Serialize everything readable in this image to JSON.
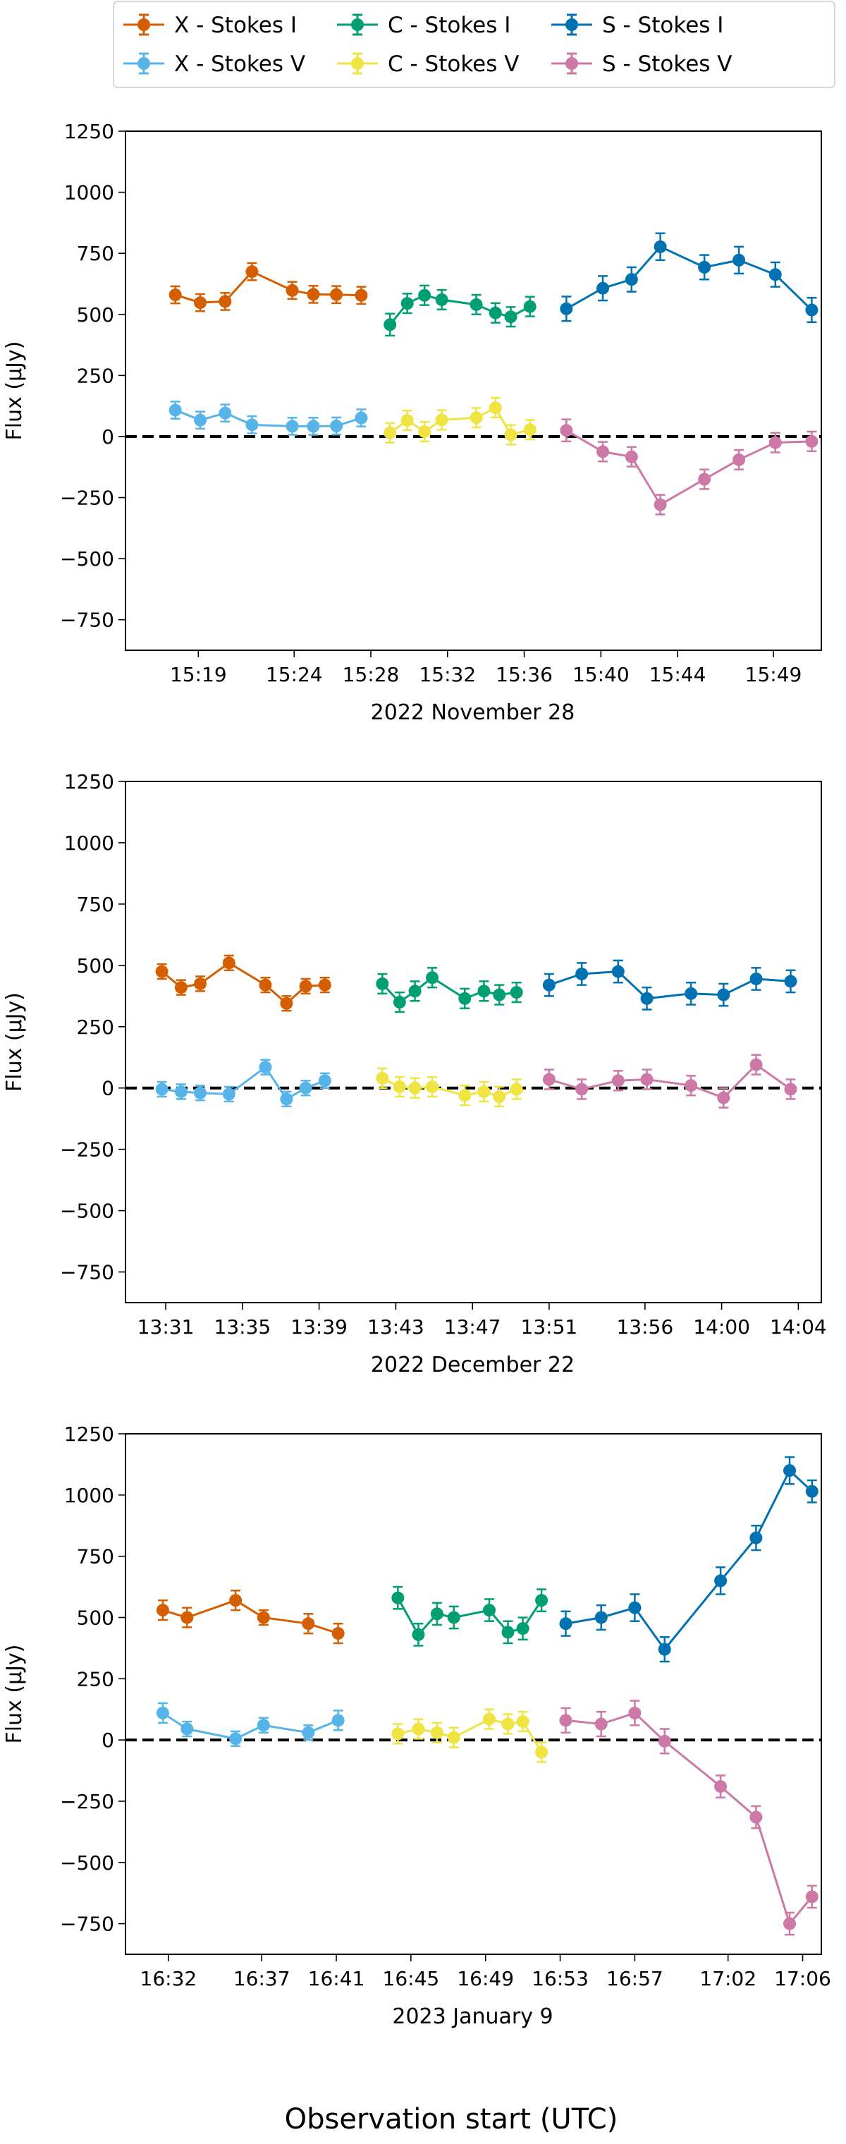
{
  "figure": {
    "xlabel_global": "Observation start (UTC)"
  },
  "legend": [
    {
      "label": "X - Stokes I",
      "color": "#d55e00"
    },
    {
      "label": "X - Stokes V",
      "color": "#56b4e9"
    },
    {
      "label": "C - Stokes I",
      "color": "#009e73"
    },
    {
      "label": "C - Stokes V",
      "color": "#f0e442"
    },
    {
      "label": "S - Stokes I",
      "color": "#0072b2"
    },
    {
      "label": "S - Stokes V",
      "color": "#cc79a7"
    }
  ],
  "chart_data": [
    {
      "type": "line",
      "title": "",
      "xlabel": "2022 November 28",
      "ylabel": "Flux (μJy)",
      "ylim": [
        -875,
        1250
      ],
      "yticks": [
        -750,
        -500,
        -250,
        0,
        250,
        500,
        750,
        1000,
        1250
      ],
      "xlim": [
        "15:15.2",
        "15:51.5"
      ],
      "xticks": [
        "15:19",
        "15:24",
        "15:28",
        "15:32",
        "15:36",
        "15:40",
        "15:44",
        "15:49"
      ],
      "reference_line": 0,
      "grid": false,
      "series": [
        {
          "name": "X - Stokes I",
          "color": "#d55e00",
          "x": [
            "15:17.8",
            "15:19.1",
            "15:20.4",
            "15:21.8",
            "15:23.9",
            "15:25.0",
            "15:26.2",
            "15:27.5"
          ],
          "values": [
            580,
            548,
            553,
            675,
            598,
            582,
            581,
            578
          ],
          "error": [
            35,
            35,
            35,
            35,
            35,
            35,
            35,
            35
          ]
        },
        {
          "name": "X - Stokes V",
          "color": "#56b4e9",
          "x": [
            "15:17.8",
            "15:19.1",
            "15:20.4",
            "15:21.8",
            "15:23.9",
            "15:25.0",
            "15:26.2",
            "15:27.5"
          ],
          "values": [
            108,
            67,
            96,
            48,
            42,
            42,
            43,
            76
          ],
          "error": [
            35,
            35,
            35,
            35,
            35,
            35,
            35,
            35
          ]
        },
        {
          "name": "C - Stokes I",
          "color": "#009e73",
          "x": [
            "15:29.0",
            "15:29.9",
            "15:30.8",
            "15:31.7",
            "15:33.5",
            "15:34.5",
            "15:35.3",
            "15:36.3"
          ],
          "values": [
            458,
            545,
            578,
            560,
            540,
            506,
            490,
            532
          ],
          "error": [
            45,
            40,
            40,
            40,
            40,
            40,
            40,
            40
          ]
        },
        {
          "name": "C - Stokes V",
          "color": "#f0e442",
          "x": [
            "15:29.0",
            "15:29.9",
            "15:30.8",
            "15:31.7",
            "15:33.5",
            "15:34.5",
            "15:35.3",
            "15:36.3"
          ],
          "values": [
            15,
            66,
            20,
            68,
            77,
            118,
            7,
            28
          ],
          "error": [
            40,
            40,
            40,
            40,
            40,
            40,
            40,
            40
          ]
        },
        {
          "name": "S - Stokes I",
          "color": "#0072b2",
          "x": [
            "15:38.2",
            "15:40.1",
            "15:41.6",
            "15:43.1",
            "15:45.4",
            "15:47.2",
            "15:49.1",
            "15:51.0"
          ],
          "values": [
            523,
            607,
            643,
            777,
            693,
            722,
            663,
            518
          ],
          "error": [
            50,
            50,
            50,
            55,
            50,
            55,
            50,
            50
          ]
        },
        {
          "name": "S - Stokes V",
          "color": "#cc79a7",
          "x": [
            "15:38.2",
            "15:40.1",
            "15:41.6",
            "15:43.1",
            "15:45.4",
            "15:47.2",
            "15:49.1",
            "15:51.0"
          ],
          "values": [
            25,
            -62,
            -83,
            -279,
            -175,
            -95,
            -25,
            -20
          ],
          "error": [
            45,
            40,
            40,
            40,
            40,
            40,
            40,
            40
          ]
        }
      ]
    },
    {
      "type": "line",
      "title": "",
      "xlabel": "2022 December 22",
      "ylabel": "Flux (μJy)",
      "ylim": [
        -875,
        1250
      ],
      "yticks": [
        -750,
        -500,
        -250,
        0,
        250,
        500,
        750,
        1000,
        1250
      ],
      "xlim": [
        "13:28.9",
        "14:05.2"
      ],
      "xticks": [
        "13:31",
        "13:35",
        "13:39",
        "13:43",
        "13:47",
        "13:51",
        "13:56",
        "14:00",
        "14:04"
      ],
      "reference_line": 0,
      "grid": false,
      "series": [
        {
          "name": "X - Stokes I",
          "color": "#d55e00",
          "x": [
            "13:30.8",
            "13:31.8",
            "13:32.8",
            "13:34.3",
            "13:36.2",
            "13:37.3",
            "13:38.3",
            "13:39.3"
          ],
          "values": [
            475,
            410,
            425,
            510,
            420,
            345,
            415,
            420
          ],
          "error": [
            30,
            30,
            30,
            30,
            30,
            30,
            30,
            30
          ]
        },
        {
          "name": "X - Stokes V",
          "color": "#56b4e9",
          "x": [
            "13:30.8",
            "13:31.8",
            "13:32.8",
            "13:34.3",
            "13:36.2",
            "13:37.3",
            "13:38.3",
            "13:39.3"
          ],
          "values": [
            -5,
            -15,
            -20,
            -25,
            85,
            -45,
            0,
            30
          ],
          "error": [
            30,
            30,
            30,
            30,
            30,
            30,
            30,
            30
          ]
        },
        {
          "name": "C - Stokes I",
          "color": "#009e73",
          "x": [
            "13:42.3",
            "13:43.2",
            "13:44.0",
            "13:44.9",
            "13:46.6",
            "13:47.6",
            "13:48.4",
            "13:49.3"
          ],
          "values": [
            425,
            350,
            395,
            450,
            365,
            395,
            380,
            390
          ],
          "error": [
            40,
            40,
            40,
            40,
            40,
            40,
            40,
            40
          ]
        },
        {
          "name": "C - Stokes V",
          "color": "#f0e442",
          "x": [
            "13:42.3",
            "13:43.2",
            "13:44.0",
            "13:44.9",
            "13:46.6",
            "13:47.6",
            "13:48.4",
            "13:49.3"
          ],
          "values": [
            40,
            5,
            0,
            5,
            -30,
            -15,
            -35,
            -5
          ],
          "error": [
            40,
            40,
            40,
            40,
            40,
            40,
            40,
            40
          ]
        },
        {
          "name": "S - Stokes I",
          "color": "#0072b2",
          "x": [
            "13:51.0",
            "13:52.7",
            "13:54.6",
            "13:56.1",
            "13:58.4",
            "14:00.1",
            "14:01.8",
            "14:03.6"
          ],
          "values": [
            420,
            465,
            475,
            365,
            385,
            380,
            445,
            435
          ],
          "error": [
            45,
            45,
            45,
            45,
            45,
            45,
            45,
            45
          ]
        },
        {
          "name": "S - Stokes V",
          "color": "#cc79a7",
          "x": [
            "13:51.0",
            "13:52.7",
            "13:54.6",
            "13:56.1",
            "13:58.4",
            "14:00.1",
            "14:01.8",
            "14:03.6"
          ],
          "values": [
            35,
            -5,
            30,
            35,
            10,
            -40,
            95,
            -5
          ],
          "error": [
            40,
            40,
            40,
            40,
            40,
            40,
            40,
            40
          ]
        }
      ]
    },
    {
      "type": "line",
      "title": "",
      "xlabel": "2023 January 9",
      "ylabel": "Flux (μJy)",
      "ylim": [
        -875,
        1250
      ],
      "yticks": [
        -750,
        -500,
        -250,
        0,
        250,
        500,
        750,
        1000,
        1250
      ],
      "xlim": [
        "16:29.7",
        "17:07.0"
      ],
      "xticks": [
        "16:32",
        "16:37",
        "16:41",
        "16:45",
        "16:49",
        "16:53",
        "16:57",
        "17:02",
        "17:06"
      ],
      "reference_line": 0,
      "grid": false,
      "series": [
        {
          "name": "X - Stokes I",
          "color": "#d55e00",
          "x": [
            "16:31.7",
            "16:33.0",
            "16:35.6",
            "16:37.1",
            "16:39.5",
            "16:41.1"
          ],
          "values": [
            530,
            500,
            570,
            500,
            475,
            435
          ],
          "error": [
            40,
            40,
            40,
            30,
            40,
            40
          ]
        },
        {
          "name": "X - Stokes V",
          "color": "#56b4e9",
          "x": [
            "16:31.7",
            "16:33.0",
            "16:35.6",
            "16:37.1",
            "16:39.5",
            "16:41.1"
          ],
          "values": [
            110,
            45,
            5,
            60,
            30,
            80
          ],
          "error": [
            40,
            30,
            30,
            30,
            30,
            40
          ]
        },
        {
          "name": "C - Stokes I",
          "color": "#009e73",
          "x": [
            "16:44.3",
            "16:45.4",
            "16:46.4",
            "16:47.3",
            "16:49.2",
            "16:50.2",
            "16:51.0",
            "16:52.0"
          ],
          "values": [
            580,
            430,
            515,
            500,
            530,
            440,
            455,
            570
          ],
          "error": [
            45,
            45,
            45,
            45,
            45,
            45,
            45,
            45
          ]
        },
        {
          "name": "C - Stokes V",
          "color": "#f0e442",
          "x": [
            "16:44.3",
            "16:45.4",
            "16:46.4",
            "16:47.3",
            "16:49.2",
            "16:50.2",
            "16:51.0",
            "16:52.0"
          ],
          "values": [
            25,
            45,
            30,
            10,
            85,
            65,
            75,
            -50
          ],
          "error": [
            40,
            40,
            40,
            40,
            40,
            40,
            40,
            40
          ]
        },
        {
          "name": "S - Stokes I",
          "color": "#0072b2",
          "x": [
            "16:53.3",
            "16:55.2",
            "16:57.0",
            "16:58.6",
            "17:01.6",
            "17:03.5",
            "17:05.3",
            "17:06.5"
          ],
          "values": [
            475,
            500,
            540,
            370,
            650,
            825,
            1100,
            1015
          ],
          "error": [
            50,
            50,
            55,
            50,
            55,
            50,
            55,
            45
          ]
        },
        {
          "name": "S - Stokes V",
          "color": "#cc79a7",
          "x": [
            "16:53.3",
            "16:55.2",
            "16:57.0",
            "16:58.6",
            "17:01.6",
            "17:03.5",
            "17:05.3",
            "17:06.5"
          ],
          "values": [
            80,
            65,
            110,
            -5,
            -190,
            -315,
            -750,
            -640
          ],
          "error": [
            50,
            50,
            50,
            50,
            45,
            45,
            45,
            45
          ]
        }
      ]
    }
  ]
}
